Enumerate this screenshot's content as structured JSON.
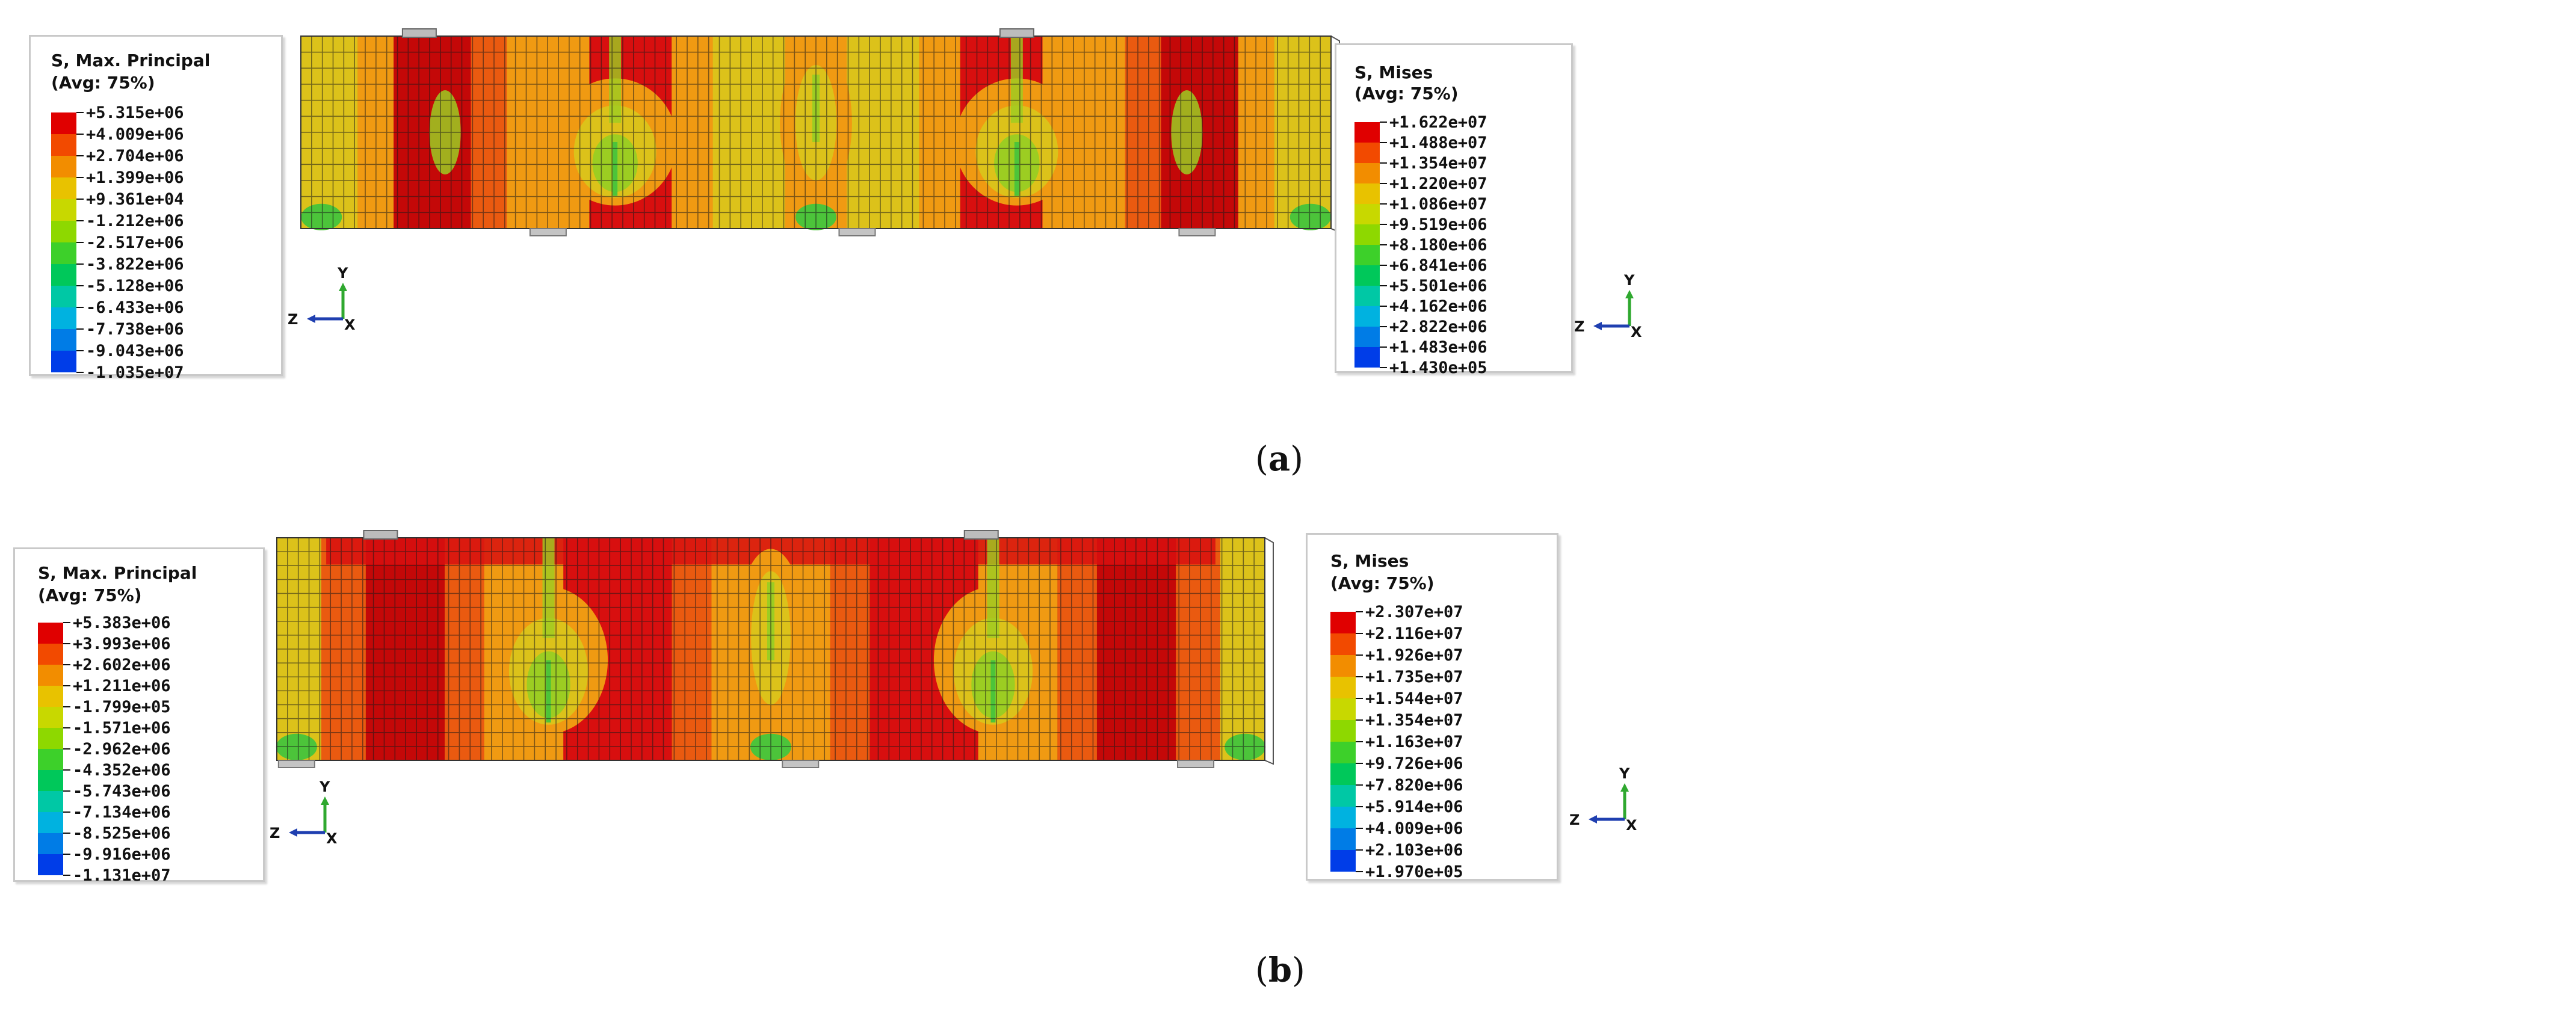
{
  "figure": {
    "panels": [
      {
        "id": "a",
        "caption": "a",
        "principal": {
          "title": "S, Max. Principal",
          "avg": "(Avg: 75%)",
          "ticks": [
            "+5.315e+06",
            "+4.009e+06",
            "+2.704e+06",
            "+1.399e+06",
            "+9.361e+04",
            "-1.212e+06",
            "-2.517e+06",
            "-3.822e+06",
            "-5.128e+06",
            "-6.433e+06",
            "-7.738e+06",
            "-9.043e+06",
            "-1.035e+07"
          ]
        },
        "mises": {
          "title": "S, Mises",
          "avg": "(Avg: 75%)",
          "ticks": [
            "+1.622e+07",
            "+1.488e+07",
            "+1.354e+07",
            "+1.220e+07",
            "+1.086e+07",
            "+9.519e+06",
            "+8.180e+06",
            "+6.841e+06",
            "+5.501e+06",
            "+4.162e+06",
            "+2.822e+06",
            "+1.483e+06",
            "+1.430e+05"
          ]
        }
      },
      {
        "id": "b",
        "caption": "b",
        "principal": {
          "title": "S, Max. Principal",
          "avg": "(Avg: 75%)",
          "ticks": [
            "+5.383e+06",
            "+3.993e+06",
            "+2.602e+06",
            "+1.211e+06",
            "-1.799e+05",
            "-1.571e+06",
            "-2.962e+06",
            "-4.352e+06",
            "-5.743e+06",
            "-7.134e+06",
            "-8.525e+06",
            "-9.916e+06",
            "-1.131e+07"
          ]
        },
        "mises": {
          "title": "S, Mises",
          "avg": "(Avg: 75%)",
          "ticks": [
            "+2.307e+07",
            "+2.116e+07",
            "+1.926e+07",
            "+1.735e+07",
            "+1.544e+07",
            "+1.354e+07",
            "+1.163e+07",
            "+9.726e+06",
            "+7.820e+06",
            "+5.914e+06",
            "+4.009e+06",
            "+2.103e+06",
            "+1.970e+05"
          ]
        }
      }
    ],
    "axis_labels": {
      "y": "Y",
      "z": "Z",
      "x": "X"
    },
    "colors": {
      "scale": [
        "#e00000",
        "#f24a00",
        "#f28d00",
        "#e8c200",
        "#c8d800",
        "#8ed800",
        "#3dd02a",
        "#00c85a",
        "#00c8a5",
        "#00b2e0",
        "#007ce6",
        "#003de8"
      ],
      "legend_border": "#c9c9c9",
      "axis_y": "#2fa82f",
      "axis_z": "#1f3fb0"
    }
  }
}
